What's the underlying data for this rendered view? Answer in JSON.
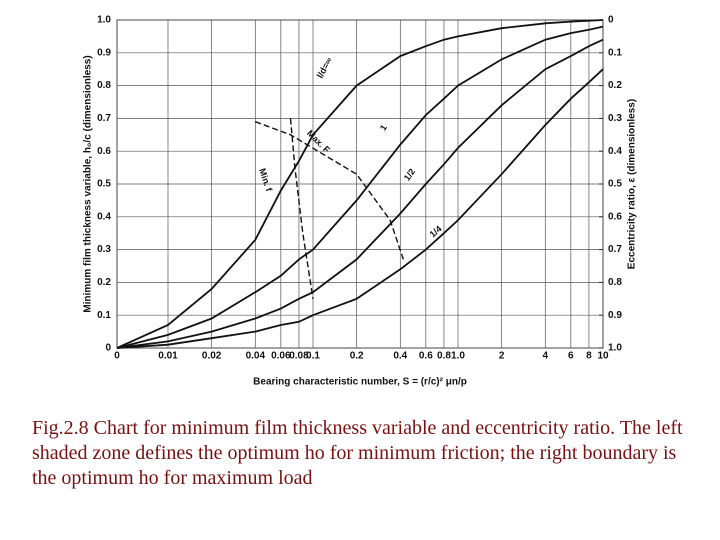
{
  "chart_data": {
    "type": "line",
    "x_axis_label": "Bearing characteristic number, S = (r/c)² μn/p",
    "y_axis_label": "Minimum film thickness variable, h₀/c (dimensionless)",
    "y2_axis_label": "Eccentricity ratio, ε (dimensionless)",
    "xscale": "log",
    "grid": true,
    "xlim": [
      0,
      10
    ],
    "xticks": [
      0,
      0.01,
      0.02,
      0.04,
      0.06,
      0.08,
      0.1,
      0.2,
      0.4,
      0.6,
      0.8,
      {
        "value": 1,
        "label": "1.0"
      },
      2,
      4,
      6,
      8,
      10
    ],
    "ylim": [
      0,
      1
    ],
    "yticks": [
      0,
      0.1,
      0.2,
      0.3,
      0.4,
      0.5,
      0.6,
      0.7,
      0.8,
      0.9,
      {
        "value": 1,
        "label": "1.0"
      }
    ],
    "y2lim": [
      1,
      0
    ],
    "y2ticks": [
      0,
      0.1,
      0.2,
      0.3,
      0.4,
      0.5,
      0.6,
      0.7,
      0.8,
      0.9,
      {
        "value": 1,
        "label": "1.0"
      }
    ],
    "series": [
      {
        "name": "l/d=∞",
        "color": "#111111",
        "style": "solid",
        "x": [
          0,
          0.01,
          0.02,
          0.04,
          0.06,
          0.08,
          0.1,
          0.2,
          0.4,
          0.6,
          0.8,
          1,
          2,
          4,
          6,
          8,
          10
        ],
        "values": [
          0,
          0.07,
          0.18,
          0.33,
          0.48,
          0.57,
          0.65,
          0.8,
          0.89,
          0.92,
          0.94,
          0.95,
          0.975,
          0.99,
          0.995,
          0.998,
          1
        ]
      },
      {
        "name": "1",
        "color": "#111111",
        "style": "solid",
        "x": [
          0,
          0.01,
          0.02,
          0.04,
          0.06,
          0.08,
          0.1,
          0.2,
          0.4,
          0.6,
          0.8,
          1,
          2,
          4,
          6,
          8,
          10
        ],
        "values": [
          0,
          0.04,
          0.09,
          0.17,
          0.22,
          0.27,
          0.3,
          0.45,
          0.62,
          0.71,
          0.76,
          0.8,
          0.88,
          0.94,
          0.96,
          0.97,
          0.98
        ]
      },
      {
        "name": "1/2",
        "color": "#111111",
        "style": "solid",
        "x": [
          0,
          0.01,
          0.02,
          0.04,
          0.06,
          0.08,
          0.1,
          0.2,
          0.4,
          0.6,
          0.8,
          1,
          2,
          4,
          6,
          8,
          10
        ],
        "values": [
          0,
          0.02,
          0.05,
          0.09,
          0.12,
          0.15,
          0.17,
          0.27,
          0.41,
          0.5,
          0.56,
          0.61,
          0.74,
          0.85,
          0.89,
          0.92,
          0.94
        ]
      },
      {
        "name": "1/4",
        "color": "#111111",
        "style": "solid",
        "x": [
          0,
          0.01,
          0.02,
          0.04,
          0.06,
          0.08,
          0.1,
          0.2,
          0.4,
          0.6,
          0.8,
          1,
          2,
          4,
          6,
          8,
          10
        ],
        "values": [
          0,
          0.01,
          0.03,
          0.05,
          0.07,
          0.08,
          0.1,
          0.15,
          0.24,
          0.3,
          0.35,
          0.39,
          0.53,
          0.68,
          0.76,
          0.81,
          0.85
        ]
      },
      {
        "name": "Max. F",
        "color": "#111111",
        "style": "dashed",
        "x": [
          0.04,
          0.07,
          0.2,
          0.34,
          0.42
        ],
        "values": [
          0.69,
          0.65,
          0.53,
          0.39,
          0.27
        ]
      },
      {
        "name": "Min. f",
        "color": "#111111",
        "style": "dashed",
        "x": [
          0.07,
          0.075,
          0.085,
          0.1
        ],
        "values": [
          0.7,
          0.55,
          0.35,
          0.15
        ]
      }
    ]
  },
  "caption": "Fig.2.8 Chart for minimum film thickness variable and eccentricity ratio. The left shaded zone defines the optimum ho for minimum friction; the right boundary is the optimum ho for maximum load"
}
